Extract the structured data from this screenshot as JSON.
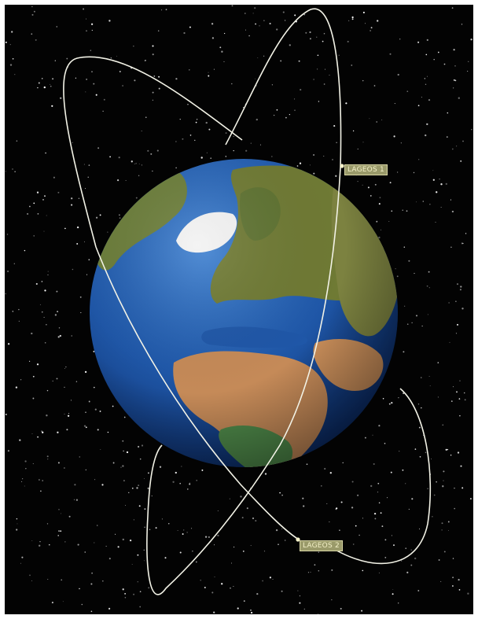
{
  "scene": {
    "satellites": [
      {
        "name": "LAGEOS 1"
      },
      {
        "name": "LAGEOS 2"
      }
    ],
    "colors": {
      "space": "#030303",
      "orbit": "#f2f2e6",
      "label_bg": "#9a9a6a",
      "label_text": "#f4f1c8",
      "ocean": "#1d4f9f",
      "land": "#6f7a34",
      "desert": "#c58a58",
      "ice": "#f2f2f2"
    }
  }
}
